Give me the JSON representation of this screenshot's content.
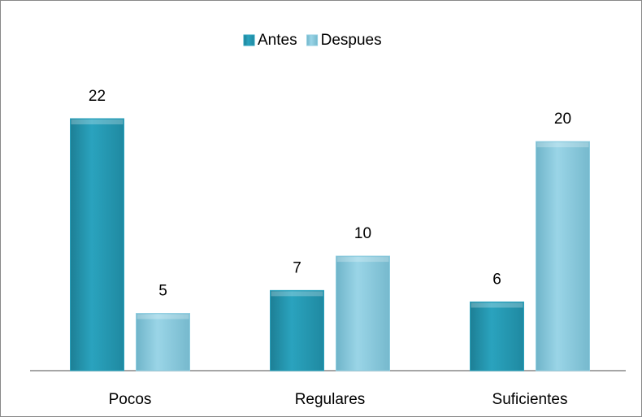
{
  "chart_data": {
    "type": "bar",
    "categories": [
      "Pocos",
      "Regulares",
      "Suficientes"
    ],
    "series": [
      {
        "name": "Antes",
        "color": "#2aa3be",
        "values": [
          22,
          7,
          6
        ]
      },
      {
        "name": "Despues",
        "color": "#8fcde0",
        "values": [
          5,
          10,
          20
        ]
      }
    ],
    "legend": "top"
  }
}
